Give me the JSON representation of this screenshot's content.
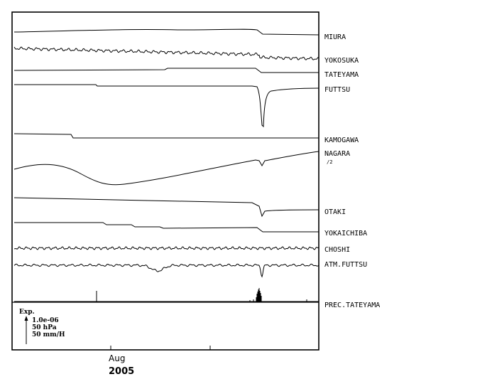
{
  "chart_data": {
    "type": "line",
    "title": "",
    "xlabel": "",
    "ylabel": "",
    "grid": false,
    "x_axis": {
      "tick_labels": [
        "Aug"
      ],
      "year_label": "2005"
    },
    "legend": {
      "label": "Exp.",
      "scales": [
        "1.0e-06",
        "50 hPa",
        "50 mm/H"
      ]
    },
    "series": [
      {
        "name": "MIURA"
      },
      {
        "name": "YOKOSUKA"
      },
      {
        "name": "TATEYAMA"
      },
      {
        "name": "FUTTSU"
      },
      {
        "name": "KAMOGAWA"
      },
      {
        "name": "NAGARA",
        "note": "/2"
      },
      {
        "name": "OTAKI"
      },
      {
        "name": "YOKAICHIBA"
      },
      {
        "name": "CHOSHI"
      },
      {
        "name": "ATM.FUTTSU"
      },
      {
        "name": "PREC.TATEYAMA"
      }
    ]
  }
}
